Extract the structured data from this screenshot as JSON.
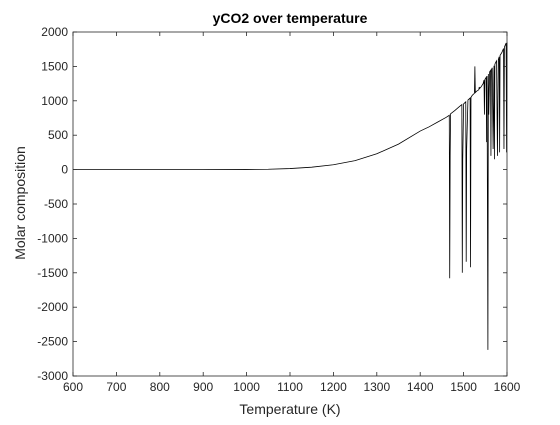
{
  "chart_data": {
    "type": "line",
    "title": "yCO2 over temperature",
    "xlabel": "Temperature (K)",
    "ylabel": "Molar composition",
    "xlim": [
      600,
      1600
    ],
    "ylim": [
      -3000,
      2000
    ],
    "xticks": [
      600,
      700,
      800,
      900,
      1000,
      1100,
      1200,
      1300,
      1400,
      1500,
      1600
    ],
    "yticks": [
      -3000,
      -2500,
      -2000,
      -1500,
      -1000,
      -500,
      0,
      500,
      1000,
      1500,
      2000
    ],
    "grid": false,
    "legend": "none",
    "line_color": "#000000",
    "series": [
      {
        "x": [
          600,
          700,
          800,
          900,
          1000,
          1050,
          1100,
          1150,
          1200,
          1250,
          1300,
          1350,
          1400,
          1420,
          1440,
          1460,
          1467,
          1468,
          1469,
          1470,
          1480,
          1490,
          1496,
          1497,
          1498,
          1500,
          1505,
          1506,
          1507,
          1510,
          1515,
          1516,
          1517,
          1520,
          1525,
          1526,
          1527,
          1530,
          1535,
          1536,
          1537,
          1540,
          1545,
          1547,
          1548,
          1549,
          1552,
          1553,
          1554,
          1556,
          1557,
          1558,
          1560,
          1562,
          1563,
          1564,
          1566,
          1568,
          1570,
          1571,
          1572,
          1574,
          1576,
          1578,
          1580,
          1582,
          1583,
          1584,
          1586,
          1588,
          1590,
          1592,
          1593,
          1594,
          1596,
          1598,
          1599,
          1600
        ],
        "y": [
          0,
          0,
          0,
          0,
          2,
          5,
          15,
          35,
          70,
          130,
          230,
          370,
          560,
          620,
          690,
          760,
          790,
          -1580,
          200,
          810,
          860,
          915,
          945,
          -1500,
          150,
          955,
          985,
          -1340,
          300,
          1010,
          1040,
          -1420,
          1050,
          1080,
          1110,
          1500,
          1120,
          1140,
          1160,
          1200,
          1180,
          1200,
          1250,
          1300,
          800,
          1310,
          1340,
          400,
          1360,
          -2620,
          1390,
          800,
          1420,
          1440,
          200,
          1450,
          1480,
          300,
          1510,
          150,
          1530,
          1560,
          1580,
          200,
          1600,
          1640,
          250,
          1660,
          1680,
          1700,
          1730,
          1760,
          300,
          1780,
          1810,
          1840,
          250,
          1850
        ]
      }
    ]
  }
}
